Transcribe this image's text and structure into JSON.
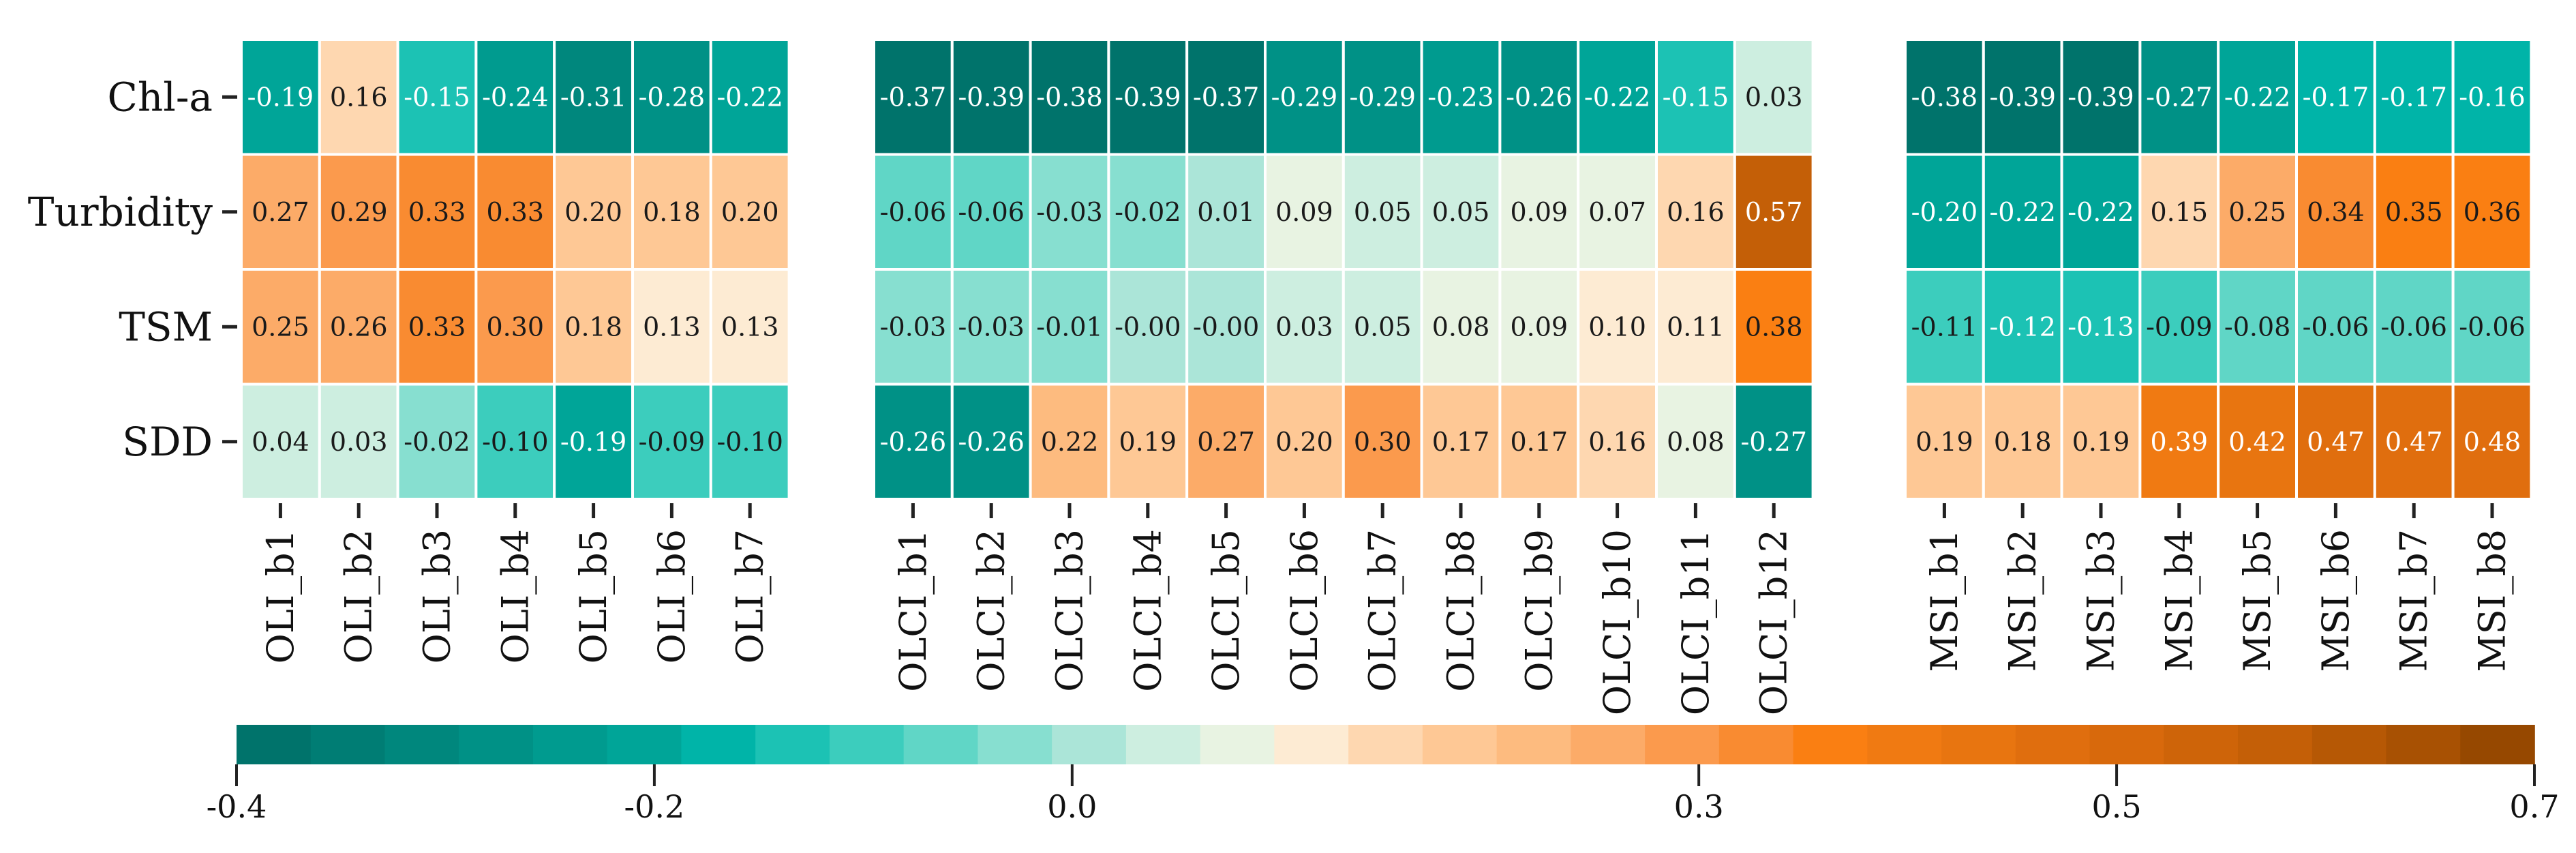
{
  "chart_data": {
    "type": "heatmap",
    "title": "",
    "rows": [
      "Chl-a",
      "Turbidity",
      "TSM",
      "SDD"
    ],
    "panels": [
      {
        "name": "OLI",
        "columns": [
          "OLI_b1",
          "OLI_b2",
          "OLI_b3",
          "OLI_b4",
          "OLI_b5",
          "OLI_b6",
          "OLI_b7"
        ],
        "values": [
          [
            -0.19,
            0.16,
            -0.15,
            -0.24,
            -0.31,
            -0.28,
            -0.22
          ],
          [
            0.27,
            0.29,
            0.33,
            0.33,
            0.2,
            0.18,
            0.2
          ],
          [
            0.25,
            0.26,
            0.33,
            0.3,
            0.18,
            0.13,
            0.13
          ],
          [
            0.04,
            0.03,
            -0.02,
            -0.1,
            -0.19,
            -0.09,
            -0.1
          ]
        ],
        "labels": [
          [
            "-0.19",
            "0.16",
            "-0.15",
            "-0.24",
            "-0.31",
            "-0.28",
            "-0.22"
          ],
          [
            "0.27",
            "0.29",
            "0.33",
            "0.33",
            "0.20",
            "0.18",
            "0.20"
          ],
          [
            "0.25",
            "0.26",
            "0.33",
            "0.30",
            "0.18",
            "0.13",
            "0.13"
          ],
          [
            "0.04",
            "0.03",
            "-0.02",
            "-0.10",
            "-0.19",
            "-0.09",
            "-0.10"
          ]
        ]
      },
      {
        "name": "OLCI",
        "columns": [
          "OLCI_b1",
          "OLCI_b2",
          "OLCI_b3",
          "OLCI_b4",
          "OLCI_b5",
          "OLCI_b6",
          "OLCI_b7",
          "OLCI_b8",
          "OLCI_b9",
          "OLCI_b10",
          "OLCI_b11",
          "OLCI_b12"
        ],
        "values": [
          [
            -0.37,
            -0.39,
            -0.38,
            -0.39,
            -0.37,
            -0.29,
            -0.29,
            -0.23,
            -0.26,
            -0.22,
            -0.15,
            0.03
          ],
          [
            -0.06,
            -0.06,
            -0.03,
            -0.02,
            0.01,
            0.09,
            0.05,
            0.05,
            0.09,
            0.07,
            0.16,
            0.57
          ],
          [
            -0.03,
            -0.03,
            -0.01,
            -0.001,
            -0.001,
            0.03,
            0.05,
            0.08,
            0.09,
            0.1,
            0.11,
            0.38
          ],
          [
            -0.26,
            -0.26,
            0.22,
            0.19,
            0.27,
            0.2,
            0.3,
            0.17,
            0.17,
            0.16,
            0.08,
            -0.27
          ]
        ],
        "labels": [
          [
            "-0.37",
            "-0.39",
            "-0.38",
            "-0.39",
            "-0.37",
            "-0.29",
            "-0.29",
            "-0.23",
            "-0.26",
            "-0.22",
            "-0.15",
            "0.03"
          ],
          [
            "-0.06",
            "-0.06",
            "-0.03",
            "-0.02",
            "0.01",
            "0.09",
            "0.05",
            "0.05",
            "0.09",
            "0.07",
            "0.16",
            "0.57"
          ],
          [
            "-0.03",
            "-0.03",
            "-0.01",
            "-0.00",
            "-0.00",
            "0.03",
            "0.05",
            "0.08",
            "0.09",
            "0.10",
            "0.11",
            "0.38"
          ],
          [
            "-0.26",
            "-0.26",
            "0.22",
            "0.19",
            "0.27",
            "0.20",
            "0.30",
            "0.17",
            "0.17",
            "0.16",
            "0.08",
            "-0.27"
          ]
        ]
      },
      {
        "name": "MSI",
        "columns": [
          "MSI_b1",
          "MSI_b2",
          "MSI_b3",
          "MSI_b4",
          "MSI_b5",
          "MSI_b6",
          "MSI_b7",
          "MSI_b8"
        ],
        "values": [
          [
            -0.38,
            -0.39,
            -0.39,
            -0.27,
            -0.22,
            -0.17,
            -0.17,
            -0.16
          ],
          [
            -0.2,
            -0.22,
            -0.22,
            0.15,
            0.25,
            0.34,
            0.35,
            0.36
          ],
          [
            -0.11,
            -0.12,
            -0.13,
            -0.09,
            -0.08,
            -0.06,
            -0.06,
            -0.06
          ],
          [
            0.19,
            0.18,
            0.19,
            0.39,
            0.42,
            0.47,
            0.47,
            0.48
          ]
        ],
        "labels": [
          [
            "-0.38",
            "-0.39",
            "-0.39",
            "-0.27",
            "-0.22",
            "-0.17",
            "-0.17",
            "-0.16"
          ],
          [
            "-0.20",
            "-0.22",
            "-0.22",
            "0.15",
            "0.25",
            "0.34",
            "0.35",
            "0.36"
          ],
          [
            "-0.11",
            "-0.12",
            "-0.13",
            "-0.09",
            "-0.08",
            "-0.06",
            "-0.06",
            "-0.06"
          ],
          [
            "0.19",
            "0.18",
            "0.19",
            "0.39",
            "0.42",
            "0.47",
            "0.47",
            "0.48"
          ]
        ]
      }
    ],
    "colorbar": {
      "range": [
        -0.4,
        0.7
      ],
      "tick_values": [
        -0.4,
        -0.2,
        0.0,
        0.3,
        0.5,
        0.7
      ],
      "tick_labels": [
        "-0.4",
        "-0.2",
        "0.0",
        "0.3",
        "0.5",
        "0.7"
      ],
      "colors": [
        "#00736b",
        "#007d74",
        "#00877d",
        "#009186",
        "#009b8f",
        "#00a598",
        "#00b4a8",
        "#1cc2b4",
        "#3ccdbd",
        "#60d6c6",
        "#87dfd0",
        "#abe5d8",
        "#cdeee0",
        "#e8f3e2",
        "#fdebd3",
        "#fed7b0",
        "#fec895",
        "#fdbb7f",
        "#fcab68",
        "#fb9a4d",
        "#f98b31",
        "#fa7f12",
        "#f07a12",
        "#e87510",
        "#e06e0e",
        "#d8690c",
        "#ce6409",
        "#c45f07",
        "#b65805",
        "#a85103",
        "#964800"
      ]
    }
  }
}
